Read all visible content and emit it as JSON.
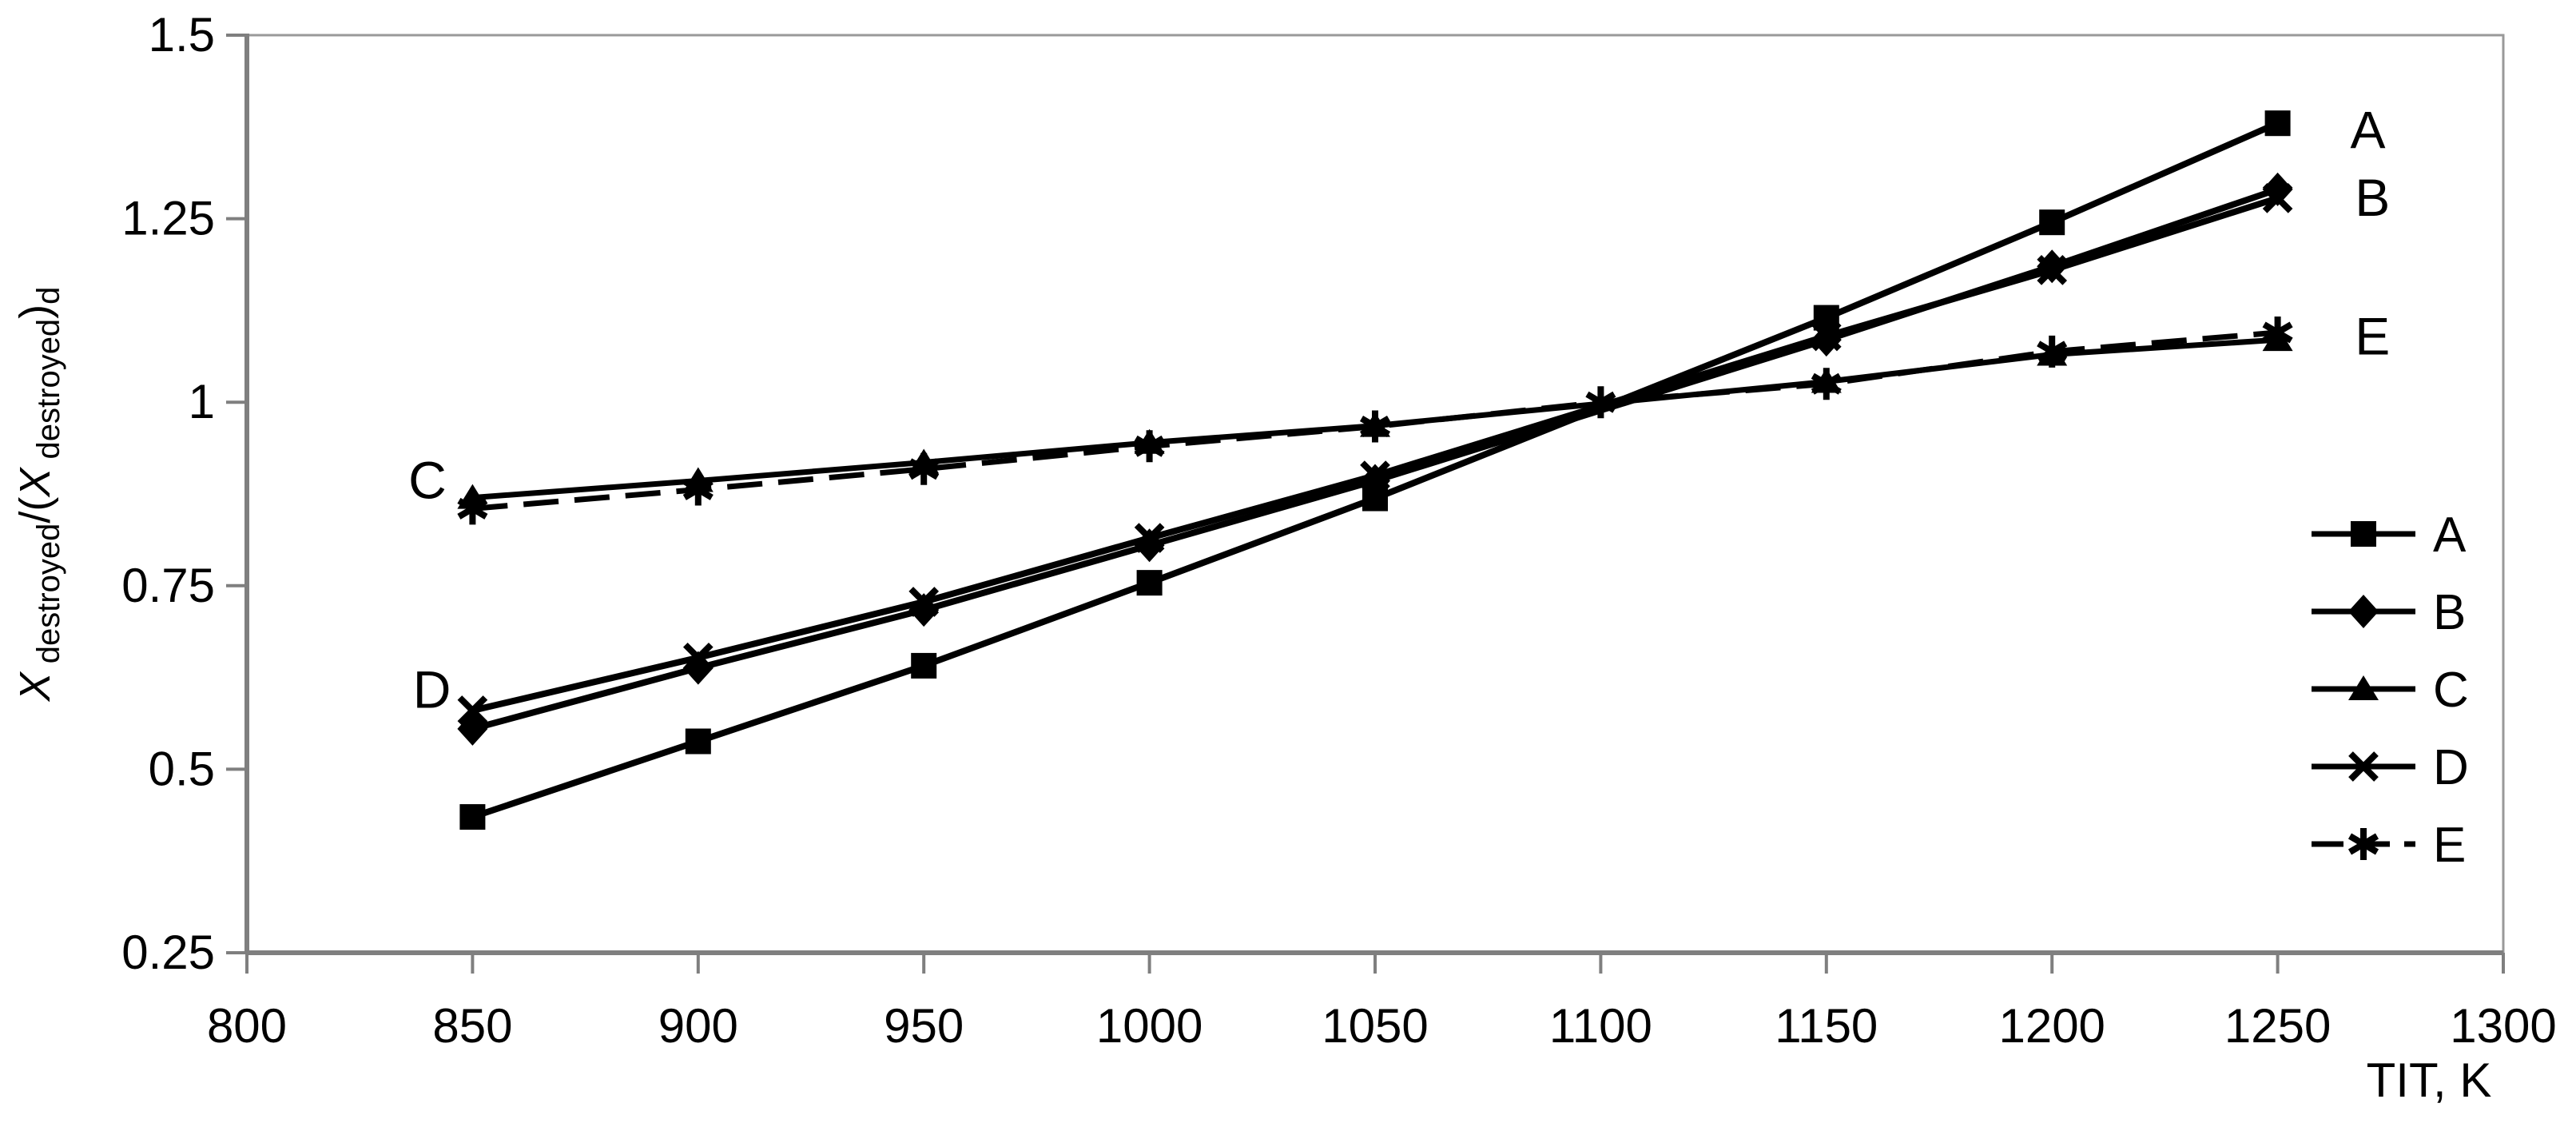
{
  "chart_data": {
    "type": "line",
    "xlabel": "TIT, K",
    "ylabel": "X destroyed/(X destroyed)d",
    "ylabel_parts": [
      {
        "t": "X",
        "style": "italic"
      },
      {
        "t": " destroyed",
        "style": "sub"
      },
      {
        "t": "/(",
        "style": "base"
      },
      {
        "t": "X",
        "style": "italic"
      },
      {
        "t": " destroyed",
        "style": "sub"
      },
      {
        "t": ")",
        "style": "base"
      },
      {
        "t": "d",
        "style": "sub"
      }
    ],
    "xlim": [
      800,
      1300
    ],
    "ylim": [
      0.25,
      1.5
    ],
    "xticks": [
      800,
      850,
      900,
      950,
      1000,
      1050,
      1100,
      1150,
      1200,
      1250,
      1300
    ],
    "yticks": [
      0.25,
      0.5,
      0.75,
      1,
      1.25,
      1.5
    ],
    "ytick_labels": [
      "0.25",
      "0.5",
      "0.75",
      "1",
      "1.25",
      "1.5"
    ],
    "grid": false,
    "legend_position": "right-inside",
    "series": [
      {
        "name": "A",
        "marker": "square",
        "line": "solid",
        "points": [
          [
            850,
            0.435
          ],
          [
            900,
            0.538
          ],
          [
            950,
            0.641
          ],
          [
            1000,
            0.754
          ],
          [
            1050,
            0.869
          ],
          [
            1150,
            1.115
          ],
          [
            1200,
            1.245
          ],
          [
            1250,
            1.38
          ]
        ]
      },
      {
        "name": "B",
        "marker": "diamond",
        "line": "solid",
        "points": [
          [
            850,
            0.555
          ],
          [
            900,
            0.638
          ],
          [
            950,
            0.717
          ],
          [
            1000,
            0.805
          ],
          [
            1050,
            0.893
          ],
          [
            1150,
            1.085
          ],
          [
            1200,
            1.185
          ],
          [
            1250,
            1.29
          ]
        ]
      },
      {
        "name": "C",
        "marker": "triangle",
        "line": "solid",
        "points": [
          [
            850,
            0.87
          ],
          [
            900,
            0.893
          ],
          [
            950,
            0.918
          ],
          [
            1000,
            0.945
          ],
          [
            1050,
            0.968
          ],
          [
            1150,
            1.028
          ],
          [
            1200,
            1.065
          ],
          [
            1250,
            1.085
          ]
        ]
      },
      {
        "name": "D",
        "marker": "x",
        "line": "solid",
        "points": [
          [
            850,
            0.58
          ],
          [
            900,
            0.652
          ],
          [
            950,
            0.728
          ],
          [
            1000,
            0.815
          ],
          [
            1050,
            0.9
          ],
          [
            1150,
            1.09
          ],
          [
            1200,
            1.18
          ],
          [
            1250,
            1.278
          ]
        ]
      },
      {
        "name": "E",
        "marker": "asterisk",
        "line": "dashed",
        "points": [
          [
            850,
            0.855
          ],
          [
            900,
            0.881
          ],
          [
            950,
            0.909
          ],
          [
            1000,
            0.94
          ],
          [
            1050,
            0.967
          ],
          [
            1100,
            1.0
          ],
          [
            1150,
            1.025
          ],
          [
            1200,
            1.069
          ],
          [
            1250,
            1.095
          ]
        ]
      }
    ],
    "annotations": [
      {
        "text": "C",
        "x": 840,
        "y": 0.894
      },
      {
        "text": "D",
        "x": 841,
        "y": 0.609
      },
      {
        "text": "A",
        "x": 1270,
        "y": 1.371
      },
      {
        "text": "B",
        "x": 1271,
        "y": 1.279
      },
      {
        "text": "E",
        "x": 1271,
        "y": 1.09
      }
    ],
    "legend": [
      "A",
      "B",
      "C",
      "D",
      "E"
    ]
  },
  "colors": {
    "series_color": "#000000",
    "axis_color": "#7f7f7f",
    "frame_color": "#999999",
    "background": "#ffffff",
    "text_color": "#000000"
  }
}
